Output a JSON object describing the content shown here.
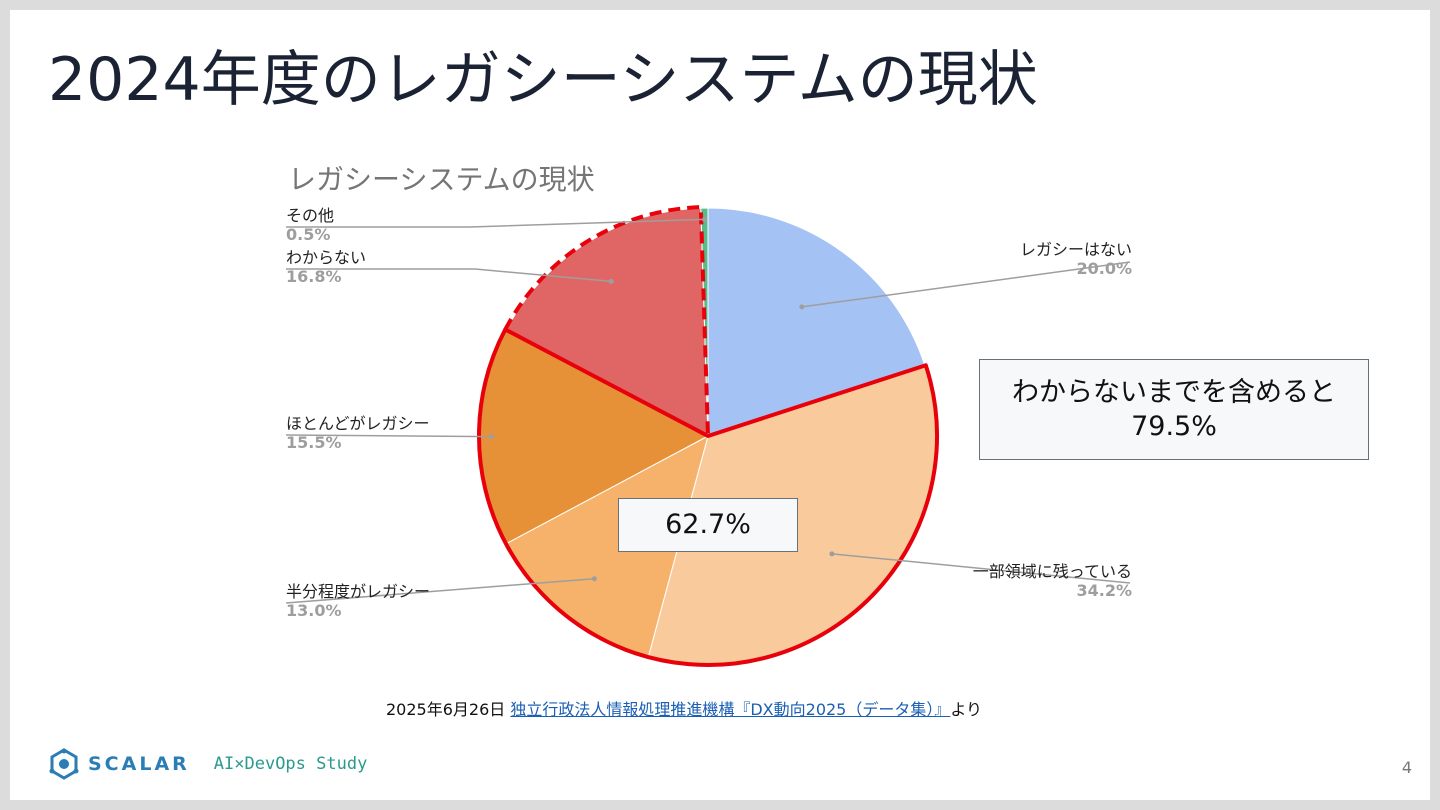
{
  "title": "2024年度のレガシーシステムの現状",
  "chart_data": {
    "type": "pie",
    "title": "レガシーシステムの現状",
    "slices": [
      {
        "name": "レガシーはない",
        "value": 20.0,
        "label": "20.0%",
        "color": "#a4c2f4"
      },
      {
        "name": "一部領域に残っている",
        "value": 34.2,
        "label": "34.2%",
        "color": "#f9cb9c"
      },
      {
        "name": "半分程度がレガシー",
        "value": 13.0,
        "label": "13.0%",
        "color": "#f6b26b"
      },
      {
        "name": "ほとんどがレガシー",
        "value": 15.5,
        "label": "15.5%",
        "color": "#e69138"
      },
      {
        "name": "わからない",
        "value": 16.8,
        "label": "16.8%",
        "color": "#e06666"
      },
      {
        "name": "その他",
        "value": 0.5,
        "label": "0.5%",
        "color": "#57bb8a"
      }
    ]
  },
  "callouts": {
    "big_line1": "わからないまでを含めると",
    "big_line2": "79.5%",
    "small": "62.7%"
  },
  "source": {
    "date": "2025年6月26日",
    "link_text": "独立行政法人情報処理推進機構『DX動向2025（データ集）』",
    "suffix": "より"
  },
  "footer": {
    "logo": "SCALAR",
    "study": "AI×DevOps Study",
    "page": "4"
  }
}
